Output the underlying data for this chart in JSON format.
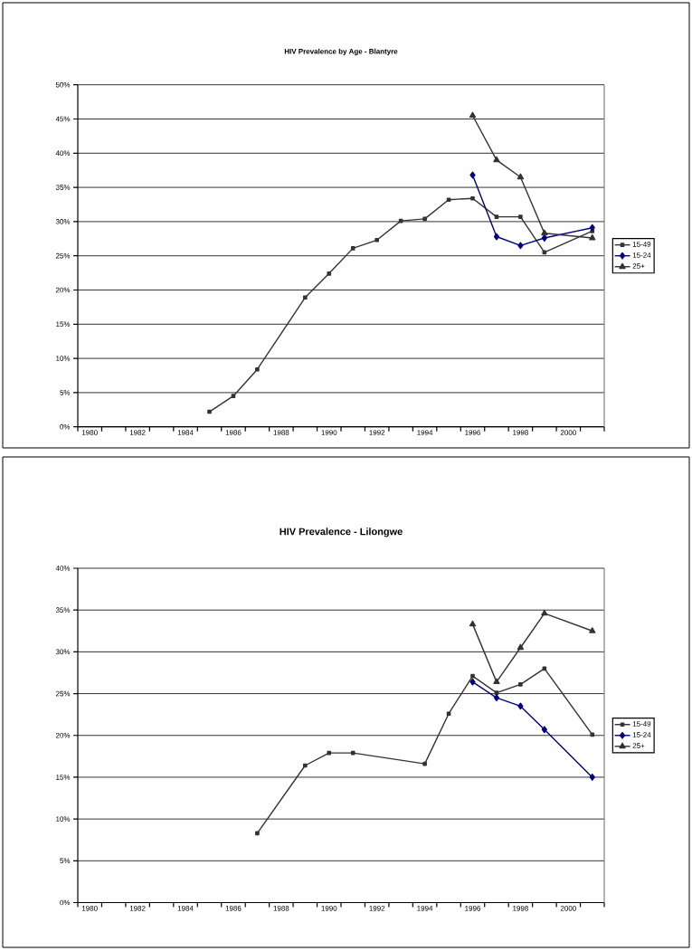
{
  "chart_data": [
    {
      "type": "line",
      "title": "HIV Prevalence by Age - Blantyre",
      "x": [
        1985,
        1986,
        1987,
        1989,
        1990,
        1991,
        1992,
        1993,
        1994,
        1995,
        1996,
        1997,
        1998,
        1999,
        2001
      ],
      "series": [
        {
          "name": "15-49",
          "color": "#333333",
          "marker": "square",
          "values": [
            2.2,
            4.5,
            8.4,
            18.9,
            22.4,
            26.1,
            27.3,
            30.1,
            30.4,
            33.2,
            33.4,
            30.7,
            30.7,
            25.5,
            28.6
          ]
        },
        {
          "name": "15-24",
          "color": "#000080",
          "marker": "diamond",
          "x": [
            1996,
            1997,
            1998,
            1999,
            2001
          ],
          "values": [
            36.8,
            27.8,
            26.5,
            27.6,
            29.1
          ]
        },
        {
          "name": "25+",
          "color": "#333333",
          "marker": "triangle",
          "x": [
            1996,
            1997,
            1998,
            1999,
            2001
          ],
          "values": [
            45.5,
            39.0,
            36.5,
            28.3,
            27.6
          ]
        }
      ],
      "xlim": [
        1979.5,
        2001.5
      ],
      "xticks": [
        {
          "value": 1979.5,
          "label": null
        },
        1980,
        {
          "value": 1980.5,
          "label": null
        },
        {
          "value": 1981.5,
          "label": null
        },
        1982,
        {
          "value": 1982.5,
          "label": null
        },
        {
          "value": 1983.5,
          "label": null
        },
        1984,
        {
          "value": 1984.5,
          "label": null
        },
        {
          "value": 1985.5,
          "label": null
        },
        1986,
        {
          "value": 1986.5,
          "label": null
        },
        {
          "value": 1987.5,
          "label": null
        },
        1988,
        {
          "value": 1988.5,
          "label": null
        },
        {
          "value": 1989.5,
          "label": null
        },
        1990,
        {
          "value": 1990.5,
          "label": null
        },
        {
          "value": 1991.5,
          "label": null
        },
        1992,
        {
          "value": 1992.5,
          "label": null
        },
        {
          "value": 1993.5,
          "label": null
        },
        1994,
        {
          "value": 1994.5,
          "label": null
        },
        {
          "value": 1995.5,
          "label": null
        },
        1996,
        {
          "value": 1996.5,
          "label": null
        },
        {
          "value": 1997.5,
          "label": null
        },
        1998,
        {
          "value": 1998.5,
          "label": null
        },
        {
          "value": 1999.5,
          "label": null
        },
        2000,
        {
          "value": 2000.5,
          "label": null
        },
        {
          "value": 2001.5,
          "label": null
        }
      ],
      "ylim": [
        0,
        50
      ],
      "yticks": [
        {
          "value": 0,
          "label": "0%"
        },
        {
          "value": 5,
          "label": "5%"
        },
        {
          "value": 10,
          "label": "10%"
        },
        {
          "value": 15,
          "label": "15%"
        },
        {
          "value": 20,
          "label": "20%"
        },
        {
          "value": 25,
          "label": "25%"
        },
        {
          "value": 30,
          "label": "30%"
        },
        {
          "value": 35,
          "label": "35%"
        },
        {
          "value": 40,
          "label": "40%"
        },
        {
          "value": 45,
          "label": "45%"
        },
        {
          "value": 50,
          "label": "50%"
        }
      ],
      "grid": "y",
      "legend": "right",
      "line_style": "solid"
    },
    {
      "type": "line",
      "title": "HIV Prevalence - Lilongwe",
      "x": [
        1987,
        1989,
        1990,
        1991,
        1994,
        1995,
        1996,
        1997,
        1998,
        1999,
        2001
      ],
      "series": [
        {
          "name": "15-49",
          "color": "#333333",
          "marker": "square",
          "values": [
            8.3,
            16.4,
            17.9,
            17.9,
            16.6,
            22.6,
            27.1,
            25.1,
            26.1,
            28.0,
            20.1
          ]
        },
        {
          "name": "15-24",
          "color": "#000080",
          "marker": "diamond",
          "x": [
            1996,
            1997,
            1998,
            1999,
            2001
          ],
          "values": [
            26.4,
            24.5,
            23.5,
            20.7,
            15.0
          ]
        },
        {
          "name": "25+",
          "color": "#333333",
          "marker": "triangle",
          "x": [
            1996,
            1997,
            1998,
            1999,
            2001
          ],
          "values": [
            33.3,
            26.4,
            30.5,
            34.6,
            32.5
          ]
        }
      ],
      "xlim": [
        1979.5,
        2001.5
      ],
      "xticks": [
        {
          "value": 1979.5,
          "label": null
        },
        1980,
        {
          "value": 1980.5,
          "label": null
        },
        {
          "value": 1981.5,
          "label": null
        },
        1982,
        {
          "value": 1982.5,
          "label": null
        },
        {
          "value": 1983.5,
          "label": null
        },
        1984,
        {
          "value": 1984.5,
          "label": null
        },
        {
          "value": 1985.5,
          "label": null
        },
        1986,
        {
          "value": 1986.5,
          "label": null
        },
        {
          "value": 1987.5,
          "label": null
        },
        1988,
        {
          "value": 1988.5,
          "label": null
        },
        {
          "value": 1989.5,
          "label": null
        },
        1990,
        {
          "value": 1990.5,
          "label": null
        },
        {
          "value": 1991.5,
          "label": null
        },
        1992,
        {
          "value": 1992.5,
          "label": null
        },
        {
          "value": 1993.5,
          "label": null
        },
        1994,
        {
          "value": 1994.5,
          "label": null
        },
        {
          "value": 1995.5,
          "label": null
        },
        1996,
        {
          "value": 1996.5,
          "label": null
        },
        {
          "value": 1997.5,
          "label": null
        },
        1998,
        {
          "value": 1998.5,
          "label": null
        },
        {
          "value": 1999.5,
          "label": null
        },
        2000,
        {
          "value": 2000.5,
          "label": null
        },
        {
          "value": 2001.5,
          "label": null
        }
      ],
      "ylim": [
        0,
        40
      ],
      "yticks": [
        {
          "value": 0,
          "label": "0%"
        },
        {
          "value": 5,
          "label": "5%"
        },
        {
          "value": 10,
          "label": "10%"
        },
        {
          "value": 15,
          "label": "15%"
        },
        {
          "value": 20,
          "label": "20%"
        },
        {
          "value": 25,
          "label": "25%"
        },
        {
          "value": 30,
          "label": "30%"
        },
        {
          "value": 35,
          "label": "35%"
        },
        {
          "value": 40,
          "label": "40%"
        }
      ],
      "grid": "y",
      "legend": "right",
      "line_style": "solid"
    }
  ]
}
